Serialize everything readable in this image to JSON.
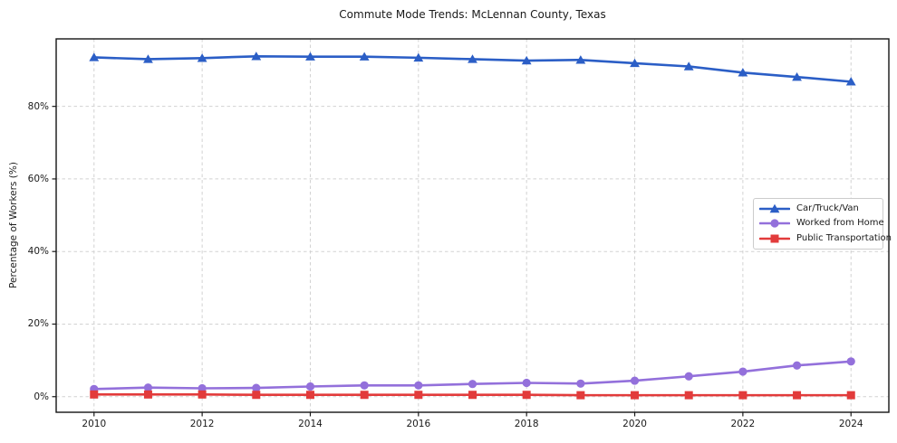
{
  "chart_data": {
    "type": "line",
    "title": "Commute Mode Trends: McLennan County, Texas",
    "xlabel": "",
    "ylabel": "Percentage of Workers (%)",
    "x": [
      2010,
      2011,
      2012,
      2013,
      2014,
      2015,
      2016,
      2017,
      2018,
      2019,
      2020,
      2021,
      2022,
      2023,
      2024
    ],
    "series": [
      {
        "name": "Car/Truck/Van",
        "color": "#2b5ec6",
        "marker": "triangle",
        "values": [
          93.5,
          93.0,
          93.3,
          93.8,
          93.7,
          93.7,
          93.4,
          93.0,
          92.6,
          92.8,
          91.9,
          91.0,
          89.3,
          88.1,
          86.8
        ]
      },
      {
        "name": "Worked from Home",
        "color": "#9370db",
        "marker": "circle",
        "values": [
          2.1,
          2.5,
          2.3,
          2.4,
          2.8,
          3.1,
          3.1,
          3.5,
          3.8,
          3.6,
          4.4,
          5.6,
          6.9,
          8.6,
          9.7
        ]
      },
      {
        "name": "Public Transportation",
        "color": "#e23b3b",
        "marker": "square",
        "values": [
          0.6,
          0.6,
          0.6,
          0.5,
          0.5,
          0.5,
          0.5,
          0.5,
          0.5,
          0.4,
          0.4,
          0.4,
          0.4,
          0.4,
          0.4
        ]
      }
    ],
    "xticks": [
      2010,
      2012,
      2014,
      2016,
      2018,
      2020,
      2022,
      2024
    ],
    "xtick_labels": [
      "2010",
      "2012",
      "2014",
      "2016",
      "2018",
      "2020",
      "2022",
      "2024"
    ],
    "yticks": [
      0,
      20,
      40,
      60,
      80
    ],
    "ytick_labels": [
      "0%",
      "20%",
      "40%",
      "60%",
      "80%"
    ],
    "xlim": [
      2009.3,
      2024.7
    ],
    "ylim": [
      -4.3,
      98.6
    ],
    "grid": true,
    "legend_position": "center right"
  }
}
